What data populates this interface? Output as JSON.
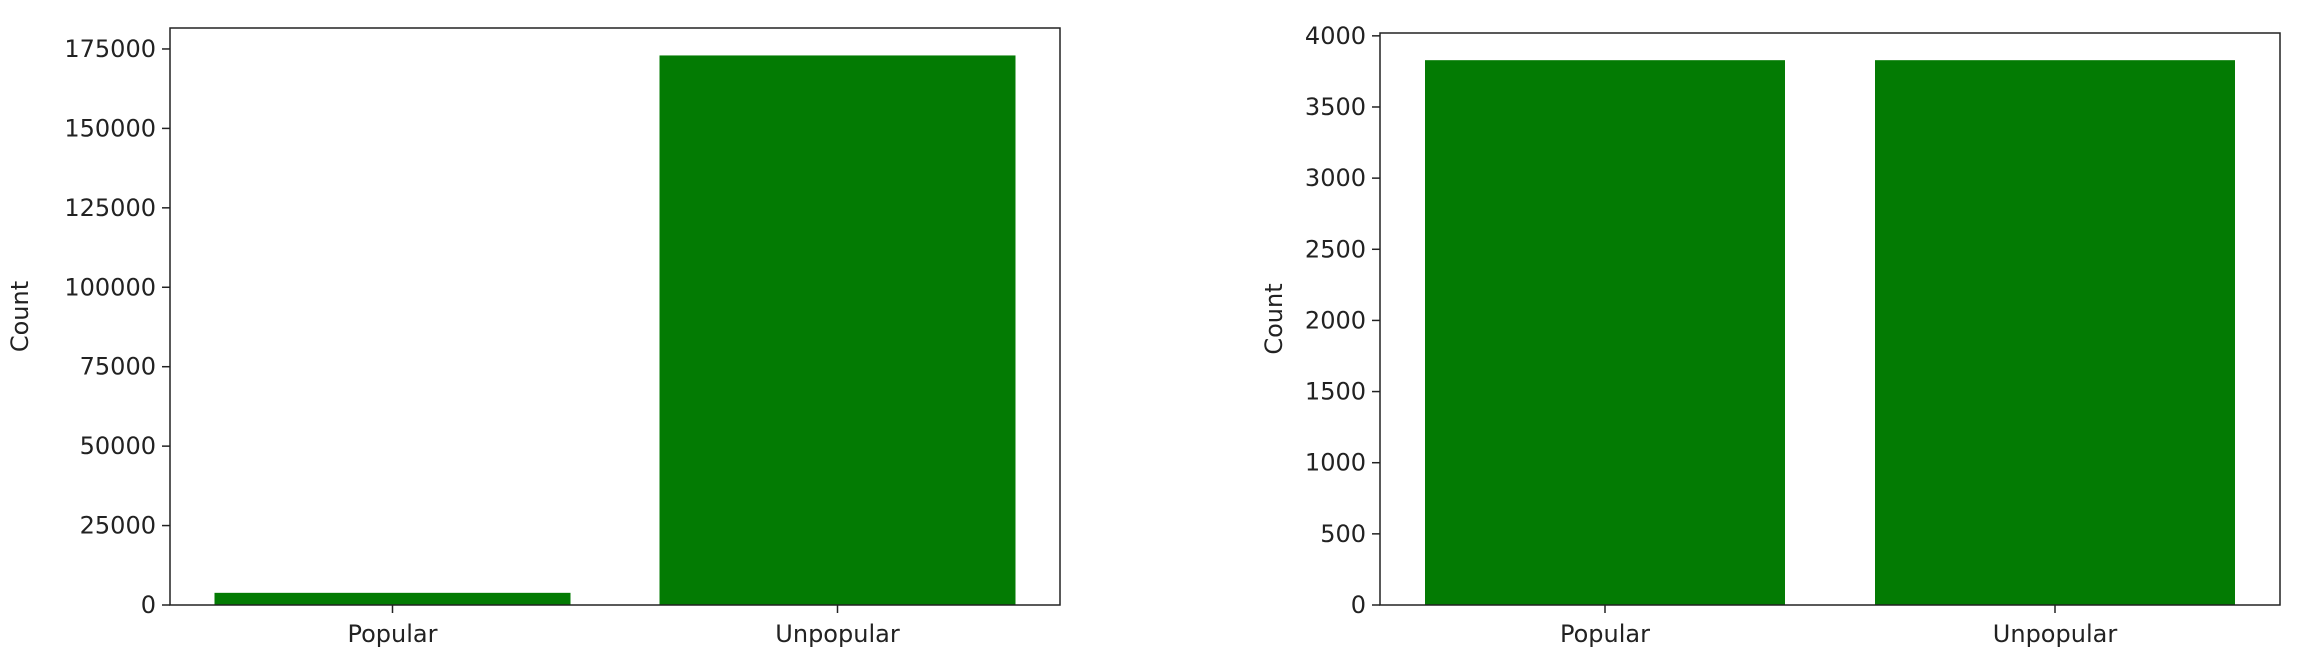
{
  "colors": {
    "bar": "#037b03",
    "axis": "#222222",
    "background": "#ffffff"
  },
  "chart_data": [
    {
      "type": "bar",
      "categories": [
        "Popular",
        "Unpopular"
      ],
      "values": [
        3829,
        172960
      ],
      "xlabel": "",
      "ylabel": "Count",
      "ylim": [
        0,
        181600
      ],
      "yticks": [
        0,
        25000,
        50000,
        75000,
        100000,
        125000,
        150000,
        175000
      ],
      "ytick_labels": [
        "0",
        "25000",
        "50000",
        "75000",
        "100000",
        "125000",
        "150000",
        "175000"
      ],
      "grid": false,
      "legend": "none"
    },
    {
      "type": "bar",
      "categories": [
        "Popular",
        "Unpopular"
      ],
      "values": [
        3829,
        3829
      ],
      "xlabel": "",
      "ylabel": "Count",
      "ylim": [
        0,
        4020
      ],
      "yticks": [
        0,
        500,
        1000,
        1500,
        2000,
        2500,
        3000,
        3500,
        4000
      ],
      "ytick_labels": [
        "0",
        "500",
        "1000",
        "1500",
        "2000",
        "2500",
        "3000",
        "3500",
        "4000"
      ],
      "grid": false,
      "legend": "none"
    }
  ]
}
